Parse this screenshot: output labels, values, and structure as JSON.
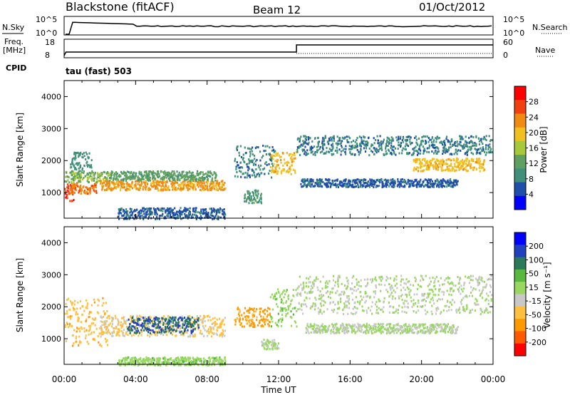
{
  "header": {
    "station": "Blackstone (fitACF)",
    "beam": "Beam 12",
    "date": "01/Oct/2012"
  },
  "strips": {
    "nsky_label": "N.Sky",
    "nsky_ticks": [
      "10^5",
      "10^0"
    ],
    "nsearch_label": "N.Search",
    "nsearch_ticks": [
      "10^5",
      "10^0"
    ],
    "freq_label_1": "Freq.",
    "freq_label_2": "[MHz]",
    "freq_ticks": [
      "18",
      "8"
    ],
    "nave_label": "Nave",
    "nave_ticks": [
      "60",
      "0"
    ],
    "cpid_label": "CPID",
    "cpid_value": "tau (fast) 503"
  },
  "colors": {
    "power_scale": [
      "#0000ff",
      "#1f4fa8",
      "#3f8f7a",
      "#5fa060",
      "#a8c83c",
      "#f0c020",
      "#f08a10",
      "#f04010",
      "#ff0000"
    ],
    "velocity_scale": [
      "#ff0000",
      "#ff5a00",
      "#ff9900",
      "#ffc040",
      "#c8c8c8",
      "#98d860",
      "#58b840",
      "#2a7a5a",
      "#2040c0",
      "#0000ff"
    ]
  },
  "chart_data": [
    {
      "type": "heatmap",
      "name": "power",
      "ylabel": "Slant Range [km]",
      "yticks": [
        "4000",
        "3000",
        "2000",
        "1000"
      ],
      "ylim": [
        200,
        4500
      ],
      "xlim": [
        0,
        24
      ],
      "colorbar_label": "Power [dB]",
      "colorbar_ticks": [
        "28",
        "24",
        "20",
        "16",
        "12",
        "8",
        "4"
      ],
      "colorbar_range": [
        0,
        32
      ],
      "bands": [
        {
          "t0": 0.0,
          "t1": 0.5,
          "r0": 750,
          "r1": 1300,
          "level": 28
        },
        {
          "t0": 0.3,
          "t1": 1.8,
          "r0": 1000,
          "r1": 1350,
          "level": 24
        },
        {
          "t0": 0.0,
          "t1": 2.5,
          "r0": 1350,
          "r1": 1700,
          "level": 14
        },
        {
          "t0": 0.3,
          "t1": 1.5,
          "r0": 1700,
          "r1": 2300,
          "level": 9
        },
        {
          "t0": 2.0,
          "t1": 9.0,
          "r0": 1100,
          "r1": 1400,
          "level": 22
        },
        {
          "t0": 2.5,
          "t1": 8.5,
          "r0": 1400,
          "r1": 1700,
          "level": 12
        },
        {
          "t0": 3.0,
          "t1": 9.0,
          "r0": 200,
          "r1": 550,
          "level": 6
        },
        {
          "t0": 9.5,
          "t1": 11.8,
          "r0": 1500,
          "r1": 2500,
          "level": 8
        },
        {
          "t0": 10.0,
          "t1": 11.0,
          "r0": 700,
          "r1": 1100,
          "level": 10
        },
        {
          "t0": 11.5,
          "t1": 13.0,
          "r0": 1600,
          "r1": 2300,
          "level": 20
        },
        {
          "t0": 13.0,
          "t1": 23.9,
          "r0": 2200,
          "r1": 2800,
          "level": 8
        },
        {
          "t0": 19.5,
          "t1": 23.5,
          "r0": 1700,
          "r1": 2100,
          "level": 20
        },
        {
          "t0": 13.2,
          "t1": 22.0,
          "r0": 1200,
          "r1": 1450,
          "level": 6
        }
      ]
    },
    {
      "type": "heatmap",
      "name": "velocity",
      "ylabel": "Slant Range [km]",
      "yticks": [
        "4000",
        "3000",
        "2000",
        "1000"
      ],
      "ylim": [
        200,
        4500
      ],
      "xlim": [
        0,
        24
      ],
      "xticks": [
        "00:00",
        "04:00",
        "08:00",
        "12:00",
        "16:00",
        "20:00",
        "00:00"
      ],
      "xlabel": "Time UT",
      "colorbar_label": "Velocity [m s⁻¹]",
      "colorbar_ticks": [
        "200",
        "100",
        "50",
        "15",
        "-15",
        "-50",
        "-100",
        "-200"
      ],
      "colorbar_range": [
        -250,
        250
      ],
      "bands": [
        {
          "t0": 0.0,
          "t1": 2.5,
          "r0": 800,
          "r1": 2300,
          "level": -80
        },
        {
          "t0": 2.0,
          "t1": 9.0,
          "r0": 1100,
          "r1": 1750,
          "level": -60
        },
        {
          "t0": 3.5,
          "t1": 7.5,
          "r0": 1200,
          "r1": 1700,
          "level": 150
        },
        {
          "t0": 3.0,
          "t1": 9.0,
          "r0": 200,
          "r1": 450,
          "level": 30
        },
        {
          "t0": 9.5,
          "t1": 11.5,
          "r0": 1400,
          "r1": 2000,
          "level": -120
        },
        {
          "t0": 11.5,
          "t1": 13.0,
          "r0": 1400,
          "r1": 2600,
          "level": 30
        },
        {
          "t0": 11.0,
          "t1": 12.0,
          "r0": 700,
          "r1": 1000,
          "level": 0
        },
        {
          "t0": 13.0,
          "t1": 23.9,
          "r0": 1800,
          "r1": 3000,
          "level": 0
        },
        {
          "t0": 13.5,
          "t1": 22.0,
          "r0": 1200,
          "r1": 1500,
          "level": 0
        }
      ]
    }
  ]
}
